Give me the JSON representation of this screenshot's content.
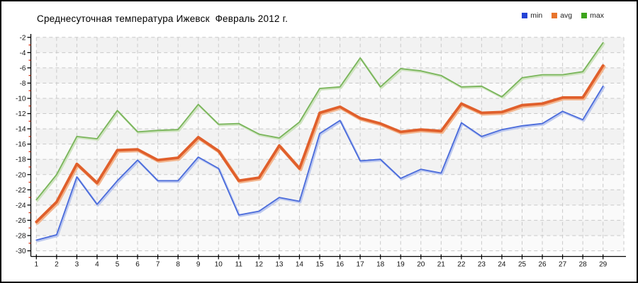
{
  "title": "Среднесуточная температура Ижевск  Февраль 2012 г.",
  "legend": [
    {
      "label": "min",
      "color": "#2343d6"
    },
    {
      "label": "avg",
      "color": "#e8742c"
    },
    {
      "label": "max",
      "color": "#3da41c"
    }
  ],
  "axis": {
    "axis_color": "#000000",
    "grid_color": "#c9c9c9",
    "minor_tick_color": "#cc2200",
    "band_color_a": "#f2f2f2",
    "band_color_b": "#fafafa",
    "tick_label_color": "#111111"
  },
  "chart_data": {
    "type": "line",
    "title": "Среднесуточная температура Ижевск  Февраль 2012 г.",
    "xlabel": "",
    "ylabel": "",
    "ylim": [
      -30,
      -2
    ],
    "yticks": [
      -2,
      -4,
      -6,
      -8,
      -10,
      -12,
      -14,
      -16,
      -18,
      -20,
      -22,
      -24,
      -26,
      -28,
      -30
    ],
    "yticks_minor": [
      -3,
      -5,
      -7,
      -9,
      -11,
      -13,
      -15,
      -17,
      -19,
      -21,
      -23,
      -25,
      -27,
      -29
    ],
    "grid": "dashed",
    "legend_position": "top-right",
    "x": [
      1,
      2,
      3,
      4,
      5,
      6,
      7,
      8,
      9,
      10,
      11,
      12,
      13,
      14,
      15,
      16,
      17,
      18,
      19,
      20,
      21,
      22,
      23,
      24,
      25,
      26,
      27,
      28,
      29
    ],
    "series": [
      {
        "name": "min",
        "color": "#4a6bdb",
        "halo": "#bcc8ef",
        "width": 1.8,
        "values": [
          -28.6,
          -27.9,
          -20.3,
          -23.9,
          -20.8,
          -18.1,
          -20.8,
          -20.8,
          -17.7,
          -19.2,
          -25.3,
          -24.8,
          -23.0,
          -23.5,
          -14.6,
          -12.9,
          -18.2,
          -18.0,
          -20.5,
          -19.3,
          -19.8,
          -13.2,
          -15.0,
          -14.1,
          -13.6,
          -13.3,
          -11.7,
          -12.8,
          -8.4
        ]
      },
      {
        "name": "avg",
        "color": "#e05f2b",
        "halo": "#f3b58d",
        "width": 3.8,
        "values": [
          -26.2,
          -23.6,
          -18.6,
          -21.1,
          -16.8,
          -16.7,
          -18.1,
          -17.8,
          -15.1,
          -16.9,
          -20.8,
          -20.4,
          -16.2,
          -19.2,
          -11.9,
          -11.1,
          -12.6,
          -13.3,
          -14.4,
          -14.1,
          -14.3,
          -10.7,
          -11.9,
          -11.8,
          -10.9,
          -10.7,
          -9.9,
          -9.9,
          -5.7
        ]
      },
      {
        "name": "max",
        "color": "#79b55a",
        "halo": "#cfe3c0",
        "width": 1.8,
        "values": [
          -23.3,
          -20.0,
          -15.0,
          -15.3,
          -11.6,
          -14.4,
          -14.2,
          -14.1,
          -10.8,
          -13.4,
          -13.3,
          -14.7,
          -15.2,
          -13.1,
          -8.7,
          -8.5,
          -4.7,
          -8.5,
          -6.1,
          -6.4,
          -7.0,
          -8.5,
          -8.4,
          -9.8,
          -7.3,
          -6.9,
          -6.9,
          -6.5,
          -2.7
        ]
      }
    ]
  }
}
